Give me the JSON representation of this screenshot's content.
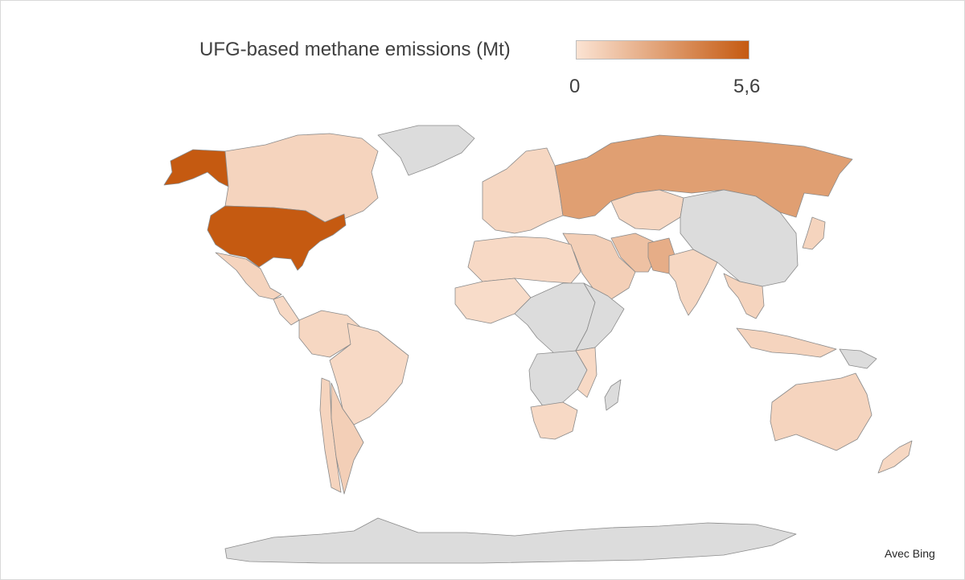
{
  "legend": {
    "title": "UFG-based methane emissions (Mt)",
    "min_label": "0",
    "max_label": "5,6",
    "min_value": 0,
    "max_value": 5.6,
    "color_low": "#fbe3d3",
    "color_high": "#c55a11"
  },
  "colors": {
    "no_data": "#dcdcdc",
    "border": "#8a8a8a",
    "frame_border": "#d9d9d9"
  },
  "credit": "Avec Bing",
  "regions": [
    {
      "name": "alaska",
      "value": 5.6
    },
    {
      "name": "canada",
      "value": 0.6
    },
    {
      "name": "united-states",
      "value": 5.6
    },
    {
      "name": "mexico",
      "value": 0.6
    },
    {
      "name": "central-america",
      "value": 0.4
    },
    {
      "name": "south-america-north",
      "value": 0.5
    },
    {
      "name": "brazil",
      "value": 0.4
    },
    {
      "name": "argentina",
      "value": 0.8
    },
    {
      "name": "chile",
      "value": 0.6
    },
    {
      "name": "greenland",
      "value": null
    },
    {
      "name": "europe",
      "value": 0.5
    },
    {
      "name": "russia",
      "value": 2.8
    },
    {
      "name": "central-asia",
      "value": 0.5
    },
    {
      "name": "iran",
      "value": 1.4
    },
    {
      "name": "pakistan",
      "value": 2.2
    },
    {
      "name": "middle-east",
      "value": 0.8
    },
    {
      "name": "north-africa",
      "value": 0.4
    },
    {
      "name": "west-africa",
      "value": 0.3
    },
    {
      "name": "central-africa",
      "value": null
    },
    {
      "name": "east-africa",
      "value": null
    },
    {
      "name": "southern-africa",
      "value": null
    },
    {
      "name": "south-africa",
      "value": 0.4
    },
    {
      "name": "mozambique",
      "value": 0.4
    },
    {
      "name": "madagascar",
      "value": null
    },
    {
      "name": "china",
      "value": null
    },
    {
      "name": "india",
      "value": 0.5
    },
    {
      "name": "southeast-asia",
      "value": 0.6
    },
    {
      "name": "japan",
      "value": 0.6
    },
    {
      "name": "indonesia",
      "value": 0.6
    },
    {
      "name": "papua-new-guinea",
      "value": null
    },
    {
      "name": "australia",
      "value": 0.6
    },
    {
      "name": "new-zealand",
      "value": 0.5
    },
    {
      "name": "antarctica",
      "value": null
    }
  ]
}
